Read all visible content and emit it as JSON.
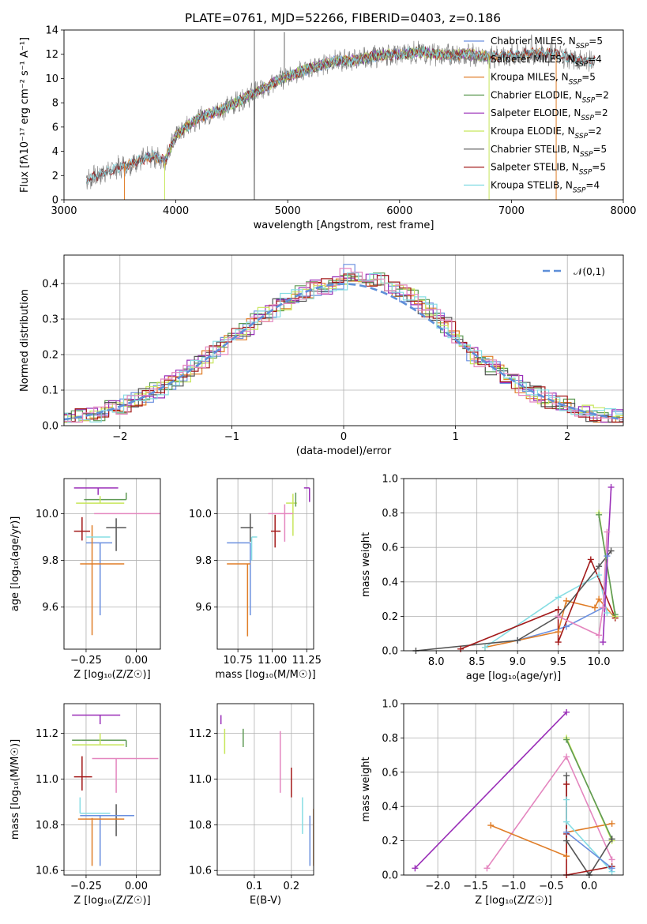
{
  "title": "PLATE=0761, MJD=52266, FIBERID=0403, z=0.186",
  "colors": {
    "Chabrier MILES": "#6a8fdf",
    "Salpeter MILES": "#7f7f7f",
    "Kroupa MILES": "#e07d27",
    "Chabrier ELODIE": "#5f9a55",
    "Salpeter ELODIE": "#9a2fb8",
    "Kroupa ELODIE": "#c7e65a",
    "Chabrier STELIB": "#555555",
    "Salpeter STELIB": "#a31a1a",
    "Kroupa STELIB": "#86dde3",
    "pink": "#e486bf",
    "normal": "#5e8fd8"
  },
  "chart_data": [
    {
      "type": "line",
      "name": "spectrum",
      "title": "PLATE=0761, MJD=52266, FIBERID=0403, z=0.186",
      "xlabel": "wavelength [Angstrom, rest frame]",
      "ylabel": "Flux [fλ10⁻¹⁷ erg cm⁻² s⁻¹ A⁻¹]",
      "xlim": [
        3000,
        8000
      ],
      "ylim": [
        0,
        14
      ],
      "xticks": [
        3000,
        4000,
        5000,
        6000,
        7000,
        8000
      ],
      "yticks": [
        0,
        2,
        4,
        6,
        8,
        10,
        12,
        14
      ],
      "continuum": [
        [
          3200,
          1.6
        ],
        [
          3400,
          2.4
        ],
        [
          3600,
          3.0
        ],
        [
          3800,
          3.6
        ],
        [
          3900,
          3.2
        ],
        [
          4000,
          5.3
        ],
        [
          4200,
          6.8
        ],
        [
          4400,
          7.4
        ],
        [
          4600,
          8.3
        ],
        [
          4800,
          9.3
        ],
        [
          5000,
          10.2
        ],
        [
          5200,
          10.8
        ],
        [
          5400,
          11.4
        ],
        [
          5600,
          11.5
        ],
        [
          5800,
          11.9
        ],
        [
          6000,
          12.0
        ],
        [
          6200,
          12.2
        ],
        [
          6400,
          11.9
        ],
        [
          6600,
          12.0
        ],
        [
          6800,
          11.8
        ],
        [
          7000,
          11.9
        ],
        [
          7200,
          12.1
        ],
        [
          7400,
          12.0
        ],
        [
          7600,
          11.5
        ],
        [
          7750,
          11.4
        ]
      ],
      "legend": [
        "Chabrier MILES, N_SSP=5",
        "Salpeter MILES, N_SSP=4",
        "Kroupa MILES, N_SSP=5",
        "Chabrier ELODIE, N_SSP=2",
        "Salpeter ELODIE, N_SSP=2",
        "Kroupa ELODIE, N_SSP=2",
        "Chabrier STELIB, N_SSP=5",
        "Salpeter STELIB, N_SSP=5",
        "Kroupa STELIB, N_SSP=4"
      ],
      "legend_loc": "right"
    },
    {
      "type": "histogram",
      "name": "residuals",
      "xlabel": "(data-model)/error",
      "ylabel": "Normed distribution",
      "xlim": [
        -2.5,
        2.5
      ],
      "ylim": [
        0,
        0.48
      ],
      "xticks": [
        -2,
        -1,
        0,
        1,
        2
      ],
      "yticks": [
        0.0,
        0.1,
        0.2,
        0.3,
        0.4
      ],
      "reference": {
        "label": "𝒩(0,1)",
        "mean": 0,
        "sigma": 1
      },
      "bin_width": 0.1
    },
    {
      "type": "scatter",
      "name": "age-vs-Z",
      "xlabel": "Z [log₁₀(Z/Z☉)]",
      "ylabel": "age  [log₁₀(age/yr)]",
      "xlim": [
        -0.36,
        0.12
      ],
      "ylim": [
        9.42,
        10.15
      ],
      "xticks": [
        -0.25,
        0.0
      ],
      "yticks": [
        9.6,
        9.8,
        10.0
      ],
      "points": [
        {
          "model": "Chabrier MILES",
          "x": -0.18,
          "xerr": [
            0.07,
            0.06
          ],
          "y": 9.875,
          "yerr": [
            0.31,
            0.0
          ]
        },
        {
          "model": "Kroupa MILES",
          "x": -0.22,
          "xerr": [
            0.06,
            0.16
          ],
          "y": 9.785,
          "yerr": [
            0.0,
            0.0
          ],
          "yrange": [
            9.48,
            9.95
          ]
        },
        {
          "model": "Chabrier ELODIE",
          "x": -0.05,
          "xerr": [
            0.21,
            0.0
          ],
          "y": 10.06,
          "yerr": [
            0.0,
            0.03
          ]
        },
        {
          "model": "Salpeter ELODIE",
          "x": -0.19,
          "xerr": [
            0.12,
            0.1
          ],
          "y": 10.11,
          "yerr": [
            0.03,
            0.0
          ]
        },
        {
          "model": "Kroupa ELODIE",
          "x": -0.18,
          "xerr": [
            0.12,
            0.12
          ],
          "y": 10.045,
          "yerr": [
            0.0,
            0.03
          ]
        },
        {
          "model": "Chabrier STELIB",
          "x": -0.1,
          "xerr": [
            0.05,
            0.05
          ],
          "y": 9.94,
          "yerr": [
            0.1,
            0.04
          ]
        },
        {
          "model": "Salpeter STELIB",
          "x": -0.27,
          "xerr": [
            0.04,
            0.04
          ],
          "y": 9.925,
          "yerr": [
            0.04,
            0.06
          ]
        },
        {
          "model": "Kroupa STELIB",
          "x": -0.2,
          "xerr": [
            0.05,
            0.07
          ],
          "y": 9.9,
          "yerr": [
            0.0,
            0.0
          ]
        },
        {
          "model": "pink",
          "x": -0.09,
          "xerr": [
            0.12,
            0.21
          ],
          "y": 10.0,
          "yerr": [
            0.0,
            0.0
          ]
        }
      ]
    },
    {
      "type": "scatter",
      "name": "age-vs-mass",
      "xlabel": "mass [log₁₀(M/M☉)]",
      "ylabel": "",
      "xlim": [
        10.6,
        11.3
      ],
      "ylim": [
        9.42,
        10.15
      ],
      "xticks": [
        10.75,
        11.0,
        11.25
      ],
      "yticks": [
        9.6,
        9.8,
        10.0
      ],
      "points": [
        {
          "model": "Chabrier MILES",
          "x": 10.84,
          "xerr": [
            0.17,
            0.0
          ],
          "y": 9.875,
          "yerr": [
            0.31,
            0.0
          ]
        },
        {
          "model": "Kroupa MILES",
          "x": 10.82,
          "xerr": [
            0.15,
            0.02
          ],
          "y": 9.785,
          "yerr": [
            0.31,
            0.0
          ]
        },
        {
          "model": "Salpeter ELODIE",
          "x": 11.27,
          "xerr": [
            0.04,
            0.0
          ],
          "y": 10.11,
          "yerr": [
            0.06,
            0.0
          ]
        },
        {
          "model": "Kroupa ELODIE",
          "x": 11.15,
          "xerr": [
            0.05,
            0.03
          ],
          "y": 10.045,
          "yerr": [
            0.14,
            0.04
          ]
        },
        {
          "model": "Chabrier ELODIE",
          "x": 11.17,
          "xerr": [
            0.0,
            0.0
          ],
          "y": 10.06,
          "yerr": [
            0.03,
            0.03
          ]
        },
        {
          "model": "Chabrier STELIB",
          "x": 10.84,
          "xerr": [
            0.07,
            0.02
          ],
          "y": 9.94,
          "yerr": [
            0.06,
            0.06
          ]
        },
        {
          "model": "Salpeter STELIB",
          "x": 11.02,
          "xerr": [
            0.03,
            0.04
          ],
          "y": 9.925,
          "yerr": [
            0.07,
            0.07
          ]
        },
        {
          "model": "Kroupa STELIB",
          "x": 10.85,
          "xerr": [
            0.0,
            0.04
          ],
          "y": 9.9,
          "yerr": [
            0.1,
            0.0
          ]
        },
        {
          "model": "pink",
          "x": 11.09,
          "xerr": [
            0.12,
            0.06
          ],
          "y": 10.0,
          "yerr": [
            0.12,
            0.04
          ]
        }
      ]
    },
    {
      "type": "line",
      "name": "weight-vs-age",
      "xlabel": "age  [log₁₀(age/yr)]",
      "ylabel": "mass weight",
      "xlim": [
        7.6,
        10.3
      ],
      "ylim": [
        0.0,
        1.0
      ],
      "xticks": [
        8.0,
        8.5,
        9.0,
        9.5,
        10.0
      ],
      "yticks": [
        0.0,
        0.2,
        0.4,
        0.6,
        0.8,
        1.0
      ],
      "series": [
        {
          "model": "Chabrier MILES",
          "x": [
            9.0,
            9.6,
            10.05,
            10.1
          ],
          "y": [
            0.06,
            0.14,
            0.25,
            0.55
          ]
        },
        {
          "model": "Kroupa MILES",
          "x": [
            8.6,
            9.5,
            9.6,
            9.95,
            10.0,
            10.2
          ],
          "y": [
            0.02,
            0.11,
            0.29,
            0.25,
            0.3,
            0.19
          ]
        },
        {
          "model": "Kroupa STELIB",
          "x": [
            8.6,
            9.5,
            10.0,
            10.1
          ],
          "y": [
            0.02,
            0.31,
            0.44,
            0.22
          ]
        },
        {
          "model": "Chabrier STELIB",
          "x": [
            7.75,
            9.0,
            9.5,
            10.0,
            10.15
          ],
          "y": [
            0.0,
            0.06,
            0.2,
            0.49,
            0.58
          ]
        },
        {
          "model": "Salpeter STELIB",
          "x": [
            8.3,
            9.5,
            9.5,
            9.9,
            10.2
          ],
          "y": [
            0.01,
            0.24,
            0.05,
            0.53,
            0.19
          ]
        },
        {
          "model": "pink",
          "x": [
            9.5,
            10.0,
            10.05,
            10.1
          ],
          "y": [
            0.2,
            0.09,
            0.25,
            0.69
          ]
        },
        {
          "model": "Kroupa ELODIE",
          "x": [
            10.0,
            10.2
          ],
          "y": [
            0.8,
            0.2
          ]
        },
        {
          "model": "Chabrier ELODIE",
          "x": [
            10.0,
            10.2
          ],
          "y": [
            0.79,
            0.21
          ]
        },
        {
          "model": "Salpeter ELODIE",
          "x": [
            10.05,
            10.15
          ],
          "y": [
            0.05,
            0.95
          ]
        }
      ]
    },
    {
      "type": "scatter",
      "name": "mass-vs-Z",
      "xlabel": "Z [log₁₀(Z/Z☉)]",
      "ylabel": "mass [log₁₀(M/M☉)]",
      "xlim": [
        -0.36,
        0.12
      ],
      "ylim": [
        10.58,
        11.33
      ],
      "xticks": [
        -0.25,
        0.0
      ],
      "yticks": [
        10.6,
        10.8,
        11.0,
        11.2
      ],
      "points": [
        {
          "model": "Salpeter ELODIE",
          "x": -0.18,
          "xerr": [
            0.14,
            0.1
          ],
          "y": 11.28,
          "yerr": [
            0.04,
            0.0
          ]
        },
        {
          "model": "Chabrier ELODIE",
          "x": -0.05,
          "xerr": [
            0.27,
            0.0
          ],
          "y": 11.17,
          "yerr": [
            0.03,
            0.0
          ]
        },
        {
          "model": "Kroupa ELODIE",
          "x": -0.18,
          "xerr": [
            0.14,
            0.12
          ],
          "y": 11.15,
          "yerr": [
            0.0,
            0.05
          ]
        },
        {
          "model": "pink",
          "x": -0.1,
          "xerr": [
            0.12,
            0.21
          ],
          "y": 11.09,
          "yerr": [
            0.15,
            0.0
          ]
        },
        {
          "model": "Salpeter STELIB",
          "x": -0.27,
          "xerr": [
            0.04,
            0.05
          ],
          "y": 11.01,
          "yerr": [
            0.06,
            0.09
          ]
        },
        {
          "model": "Chabrier STELIB",
          "x": -0.1,
          "xerr": [
            0.08,
            0.04
          ],
          "y": 10.84,
          "yerr": [
            0.09,
            0.05
          ]
        },
        {
          "model": "Chabrier MILES",
          "x": -0.18,
          "xerr": [
            0.1,
            0.17
          ],
          "y": 10.84,
          "yerr": [
            0.22,
            0.0
          ]
        },
        {
          "model": "Kroupa MILES",
          "x": -0.22,
          "xerr": [
            0.07,
            0.16
          ],
          "y": 10.825,
          "yerr": [
            0.0,
            0.0
          ],
          "yrange": [
            10.62,
            10.83
          ]
        },
        {
          "model": "Kroupa STELIB",
          "x": -0.28,
          "xerr": [
            0.0,
            0.15
          ],
          "y": 10.85,
          "yerr": [
            0.0,
            0.07
          ]
        }
      ]
    },
    {
      "type": "scatter",
      "name": "mass-vs-EBV",
      "xlabel": "E(B-V)",
      "ylabel": "",
      "xlim": [
        0.0,
        0.26
      ],
      "ylim": [
        10.58,
        11.33
      ],
      "xticks": [
        0.1,
        0.2
      ],
      "yticks": [
        10.6,
        10.8,
        11.0,
        11.2
      ],
      "points": [
        {
          "model": "Salpeter ELODIE",
          "x": 0.01,
          "y": 11.28,
          "yerr": [
            0.04,
            0.0
          ]
        },
        {
          "model": "Kroupa ELODIE",
          "x": 0.02,
          "y": 11.15,
          "yerr": [
            0.04,
            0.07
          ]
        },
        {
          "model": "Chabrier ELODIE",
          "x": 0.07,
          "y": 11.17,
          "yerr": [
            0.03,
            0.05
          ]
        },
        {
          "model": "pink",
          "x": 0.17,
          "y": 11.09,
          "yerr": [
            0.15,
            0.12
          ]
        },
        {
          "model": "Salpeter STELIB",
          "x": 0.2,
          "y": 11.01,
          "yerr": [
            0.09,
            0.04
          ]
        },
        {
          "model": "Kroupa STELIB",
          "x": 0.23,
          "y": 10.85,
          "yerr": [
            0.09,
            0.07
          ]
        },
        {
          "model": "Chabrier STELIB",
          "x": 0.24,
          "y": 10.8,
          "yerr": [
            0.0,
            0.0
          ]
        },
        {
          "model": "Chabrier MILES",
          "x": 0.25,
          "y": 10.78,
          "yerr": [
            0.16,
            0.06
          ]
        },
        {
          "model": "Kroupa MILES",
          "x": 0.26,
          "y": 10.79,
          "yerr": [
            0.17,
            0.08
          ]
        }
      ]
    },
    {
      "type": "line",
      "name": "weight-vs-Z",
      "xlabel": "Z [log₁₀(Z/Z☉)]",
      "ylabel": "mass weight",
      "xlim": [
        -2.45,
        0.45
      ],
      "ylim": [
        0.0,
        1.0
      ],
      "xticks": [
        -2.0,
        -1.5,
        -1.0,
        -0.5,
        0.0
      ],
      "yticks": [
        0.0,
        0.2,
        0.4,
        0.6,
        0.8,
        1.0
      ],
      "series": [
        {
          "model": "Salpeter ELODIE",
          "x": [
            -2.3,
            -0.3
          ],
          "y": [
            0.04,
            0.95
          ]
        },
        {
          "model": "pink",
          "x": [
            -1.35,
            -0.3,
            0.3
          ],
          "y": [
            0.04,
            0.69,
            0.09
          ]
        },
        {
          "model": "Kroupa MILES",
          "x": [
            -1.3,
            -0.3,
            -0.3,
            0.3
          ],
          "y": [
            0.29,
            0.11,
            0.25,
            0.3
          ]
        },
        {
          "model": "Kroupa ELODIE",
          "x": [
            -0.3,
            0.3
          ],
          "y": [
            0.8,
            0.2
          ]
        },
        {
          "model": "Chabrier ELODIE",
          "x": [
            -0.3,
            0.3
          ],
          "y": [
            0.79,
            0.21
          ]
        },
        {
          "model": "Chabrier STELIB",
          "x": [
            -0.3,
            -0.3,
            0.0,
            0.3
          ],
          "y": [
            0.58,
            0.2,
            0.0,
            0.21
          ]
        },
        {
          "model": "Salpeter STELIB",
          "x": [
            -0.3,
            -0.3,
            -0.3,
            0.3
          ],
          "y": [
            0.53,
            0.24,
            0.0,
            0.05
          ]
        },
        {
          "model": "Kroupa STELIB",
          "x": [
            -0.3,
            -0.3,
            0.3
          ],
          "y": [
            0.44,
            0.31,
            0.02
          ]
        },
        {
          "model": "Chabrier MILES",
          "x": [
            -0.3,
            0.3
          ],
          "y": [
            0.25,
            0.04
          ]
        }
      ]
    }
  ]
}
